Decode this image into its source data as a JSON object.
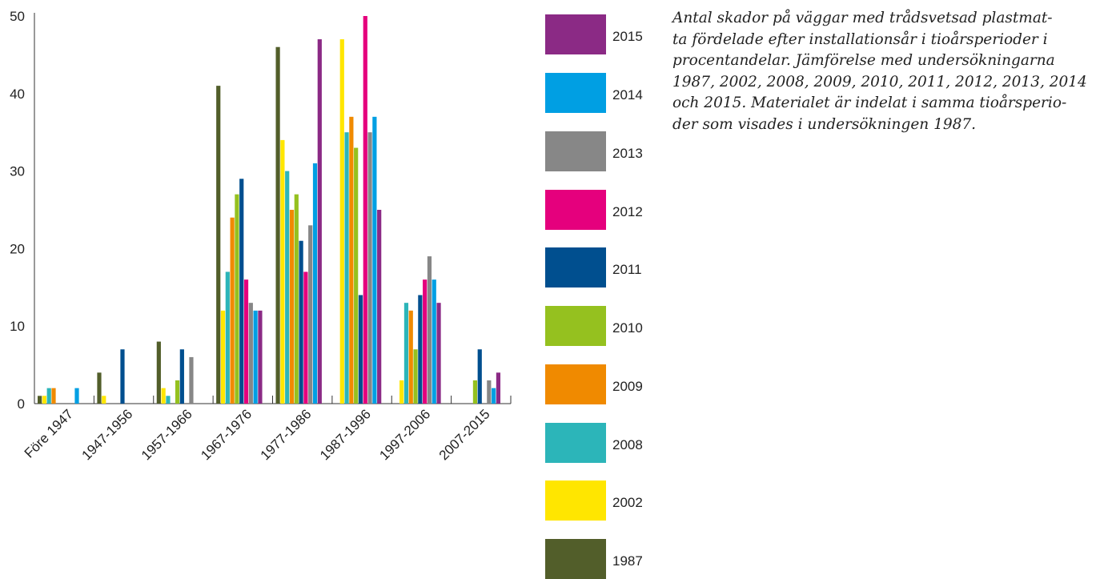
{
  "chart_data": {
    "type": "bar",
    "categories": [
      "Före 1947",
      "1947-1956",
      "1957-1966",
      "1967-1976",
      "1977-1986",
      "1987-1996",
      "1997-2006",
      "2007-2015"
    ],
    "ylim": [
      0,
      50
    ],
    "yticks": [
      "0",
      "10",
      "20",
      "30",
      "40",
      "50"
    ],
    "series": [
      {
        "name": "1987",
        "color": "#525e2a",
        "values": [
          1,
          4,
          8,
          41,
          46,
          null,
          null,
          null
        ]
      },
      {
        "name": "2002",
        "color": "#ffe600",
        "values": [
          1,
          1,
          2,
          12,
          34,
          47,
          3,
          null
        ]
      },
      {
        "name": "2008",
        "color": "#2cb5b9",
        "values": [
          2,
          null,
          1,
          17,
          30,
          35,
          13,
          null
        ]
      },
      {
        "name": "2009",
        "color": "#f08a00",
        "values": [
          2,
          null,
          null,
          24,
          25,
          37,
          12,
          null
        ]
      },
      {
        "name": "2010",
        "color": "#95c11f",
        "values": [
          null,
          null,
          3,
          27,
          27,
          33,
          7,
          3
        ]
      },
      {
        "name": "2011",
        "color": "#004f8f",
        "values": [
          null,
          7,
          7,
          29,
          21,
          14,
          14,
          7
        ]
      },
      {
        "name": "2012",
        "color": "#e5007d",
        "values": [
          null,
          null,
          null,
          16,
          17,
          50,
          16,
          null
        ]
      },
      {
        "name": "2013",
        "color": "#878787",
        "values": [
          null,
          null,
          6,
          13,
          23,
          35,
          19,
          3
        ]
      },
      {
        "name": "2014",
        "color": "#009fe3",
        "values": [
          2,
          null,
          null,
          12,
          31,
          37,
          16,
          2
        ]
      },
      {
        "name": "2015",
        "color": "#8b2a85",
        "values": [
          null,
          null,
          null,
          12,
          47,
          25,
          13,
          4
        ]
      }
    ],
    "legend_order": [
      "2015",
      "2014",
      "2013",
      "2012",
      "2011",
      "2010",
      "2009",
      "2008",
      "2002",
      "1987"
    ]
  },
  "caption": {
    "lines": [
      "Antal skador på väggar med trådsvetsad plastmat-",
      "ta fördelade efter installationsår i tioårsperioder i",
      "procentandelar. Jämförelse med undersökningarna",
      "1987, 2002, 2008, 2009, 2010, 2011, 2012, 2013, 2014",
      "och 2015. Materialet är indelat i samma tioårsperio-",
      "der som visades i undersökningen 1987."
    ]
  }
}
